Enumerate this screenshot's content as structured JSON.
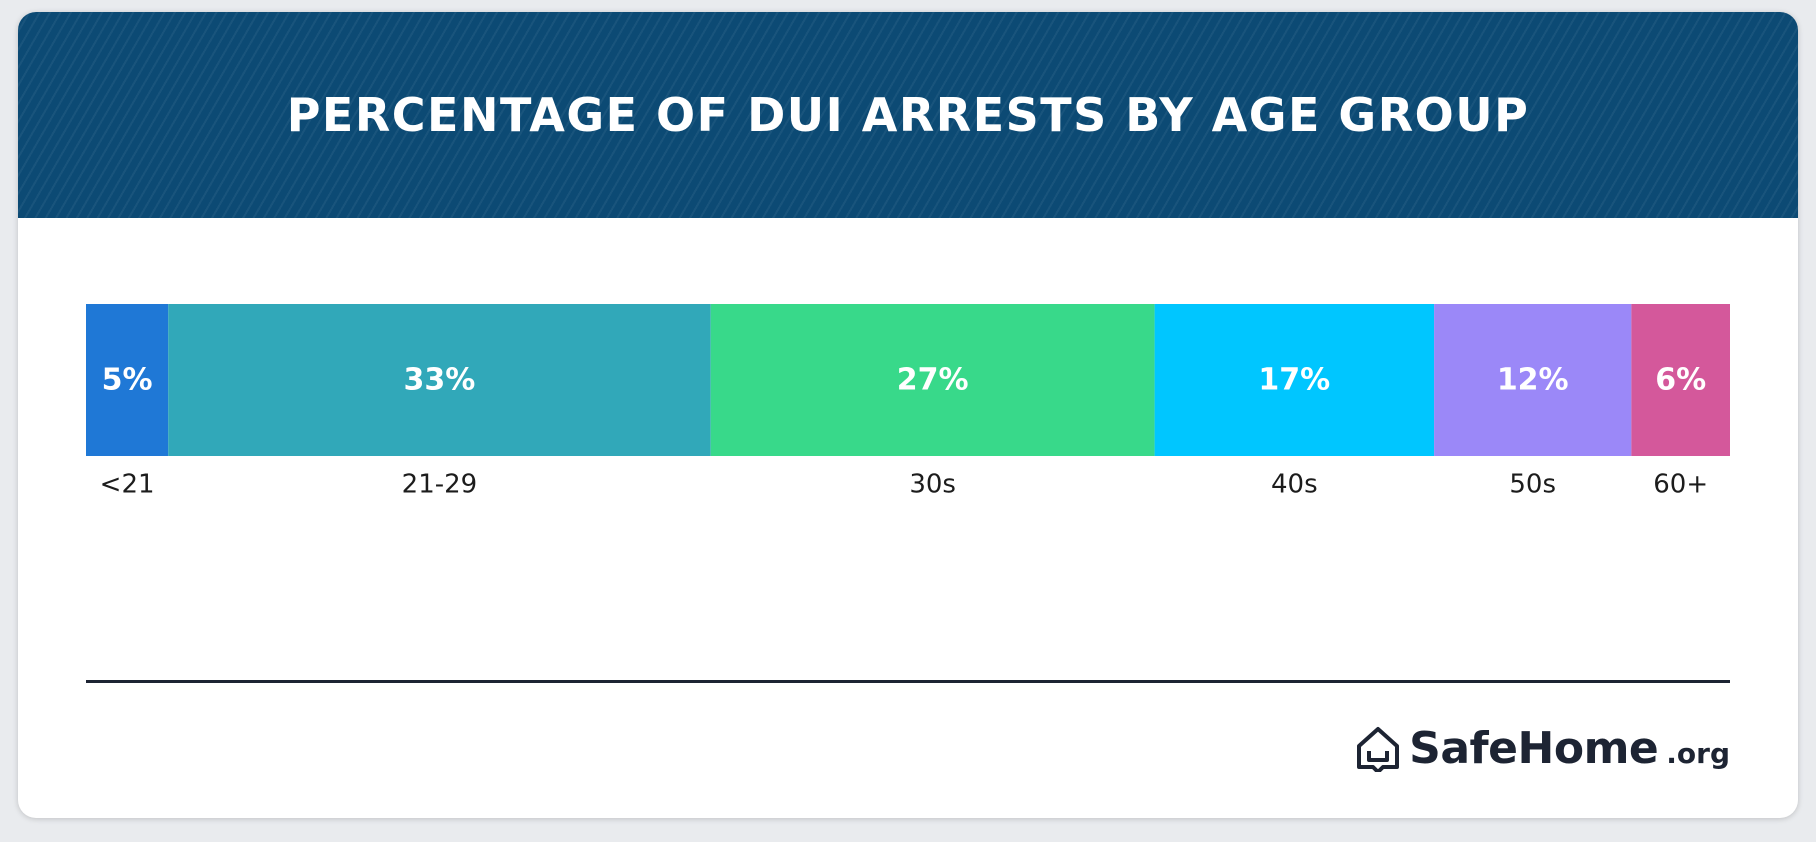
{
  "header": {
    "title": "PERCENTAGE OF DUI ARRESTS BY AGE GROUP"
  },
  "chart_data": {
    "type": "bar",
    "orientation": "horizontal-stacked",
    "categories": [
      "<21",
      "21-29",
      "30s",
      "40s",
      "50s",
      "60+"
    ],
    "values": [
      5,
      33,
      27,
      17,
      12,
      6
    ],
    "data_labels": [
      "5%",
      "33%",
      "27%",
      "17%",
      "12%",
      "6%"
    ],
    "colors": [
      "#1f78d6",
      "#31a8b9",
      "#38d98a",
      "#00c6ff",
      "#9b88f8",
      "#d4589b"
    ],
    "unit": "%",
    "total": 100,
    "grid": false,
    "legend": "none"
  },
  "branding": {
    "name": "SafeHome",
    "tld": ".org",
    "icon": "house-logo-icon",
    "text_color": "#1d2433"
  },
  "theme": {
    "header_bg": "#0c4a74",
    "card_bg": "#ffffff"
  }
}
